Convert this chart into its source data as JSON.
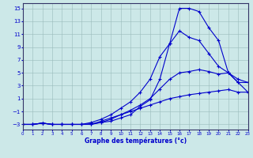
{
  "xlabel": "Graphe des températures (°c)",
  "background_color": "#cce8e8",
  "plot_bg_color": "#cce8e8",
  "line_color": "#0000cc",
  "grid_color": "#99bbbb",
  "axis_color": "#333366",
  "xlim": [
    0,
    23
  ],
  "ylim": [
    -3.8,
    15.8
  ],
  "yticks": [
    -3,
    -1,
    1,
    3,
    5,
    7,
    9,
    11,
    13,
    15
  ],
  "xticks": [
    0,
    1,
    2,
    3,
    4,
    5,
    6,
    7,
    8,
    9,
    10,
    11,
    12,
    13,
    14,
    15,
    16,
    17,
    18,
    19,
    20,
    21,
    22,
    23
  ],
  "series": [
    [
      -3,
      -3,
      -2.8,
      -3,
      -3,
      -3,
      -3,
      -3,
      -2.5,
      -2,
      -1.5,
      -1,
      -0.5,
      0,
      0.5,
      1,
      1.3,
      1.6,
      1.8,
      2,
      2.2,
      2.4,
      2,
      2
    ],
    [
      -3,
      -3,
      -2.8,
      -3,
      -3,
      -3,
      -3,
      -3,
      -2.7,
      -2.2,
      -1.5,
      -0.8,
      0,
      1,
      2.5,
      4,
      5,
      5.2,
      5.5,
      5.2,
      4.8,
      5,
      3.5,
      3.5
    ],
    [
      -3,
      -3,
      -2.8,
      -3,
      -3,
      -3,
      -3,
      -2.7,
      -2.2,
      -1.5,
      -0.5,
      0.5,
      2,
      4,
      7.5,
      9.5,
      11.5,
      10.5,
      10,
      8,
      6,
      5,
      4,
      3.5
    ],
    [
      -3,
      -3,
      -2.8,
      -3,
      -3,
      -3,
      -3,
      -2.9,
      -2.7,
      -2.5,
      -2,
      -1.5,
      -0.2,
      0.8,
      4,
      9.5,
      15,
      15,
      14.5,
      12,
      10,
      5,
      3.5,
      2
    ]
  ]
}
